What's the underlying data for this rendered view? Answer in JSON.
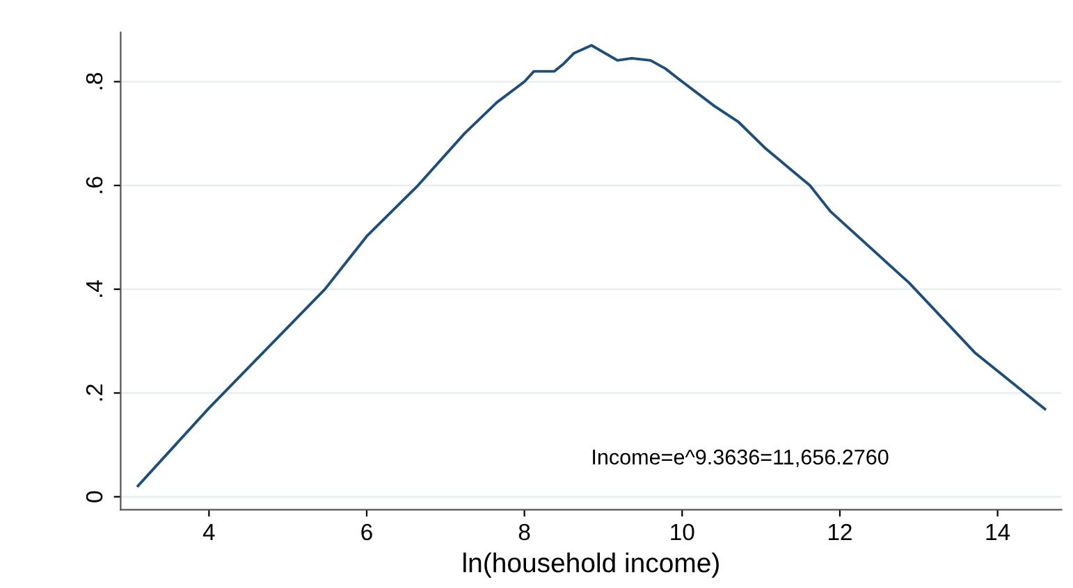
{
  "chart_data": {
    "type": "line",
    "xlabel": "ln(household income)",
    "x": [
      3.1,
      4.0,
      5.47,
      6.0,
      6.65,
      7.24,
      7.65,
      8.0,
      8.12,
      8.38,
      8.5,
      8.63,
      8.85,
      9.18,
      9.36,
      9.6,
      9.79,
      9.94,
      10.41,
      10.71,
      11.06,
      11.62,
      11.88,
      12.88,
      13.71,
      14.6
    ],
    "series": [
      {
        "color": "#1f4e79",
        "values": [
          0.021,
          0.171,
          0.4,
          0.502,
          0.6,
          0.7,
          0.76,
          0.8,
          0.82,
          0.82,
          0.835,
          0.855,
          0.87,
          0.841,
          0.845,
          0.841,
          0.825,
          0.807,
          0.753,
          0.723,
          0.671,
          0.6,
          0.55,
          0.412,
          0.278,
          0.169
        ]
      }
    ],
    "xlim": [
      2.88,
      14.81
    ],
    "ylim": [
      -0.025,
      0.895
    ],
    "xticks": [
      4,
      6,
      8,
      10,
      12,
      14
    ],
    "yticks": [
      {
        "value": 0,
        "label": "0"
      },
      {
        "value": 0.2,
        "label": ".2"
      },
      {
        "value": 0.4,
        "label": ".4"
      },
      {
        "value": 0.6,
        "label": ".6"
      },
      {
        "value": 0.8,
        "label": ".8"
      }
    ],
    "grid": "y",
    "legend": false,
    "annotations": [
      "Income=e^9.3636=11,656.2760"
    ]
  }
}
